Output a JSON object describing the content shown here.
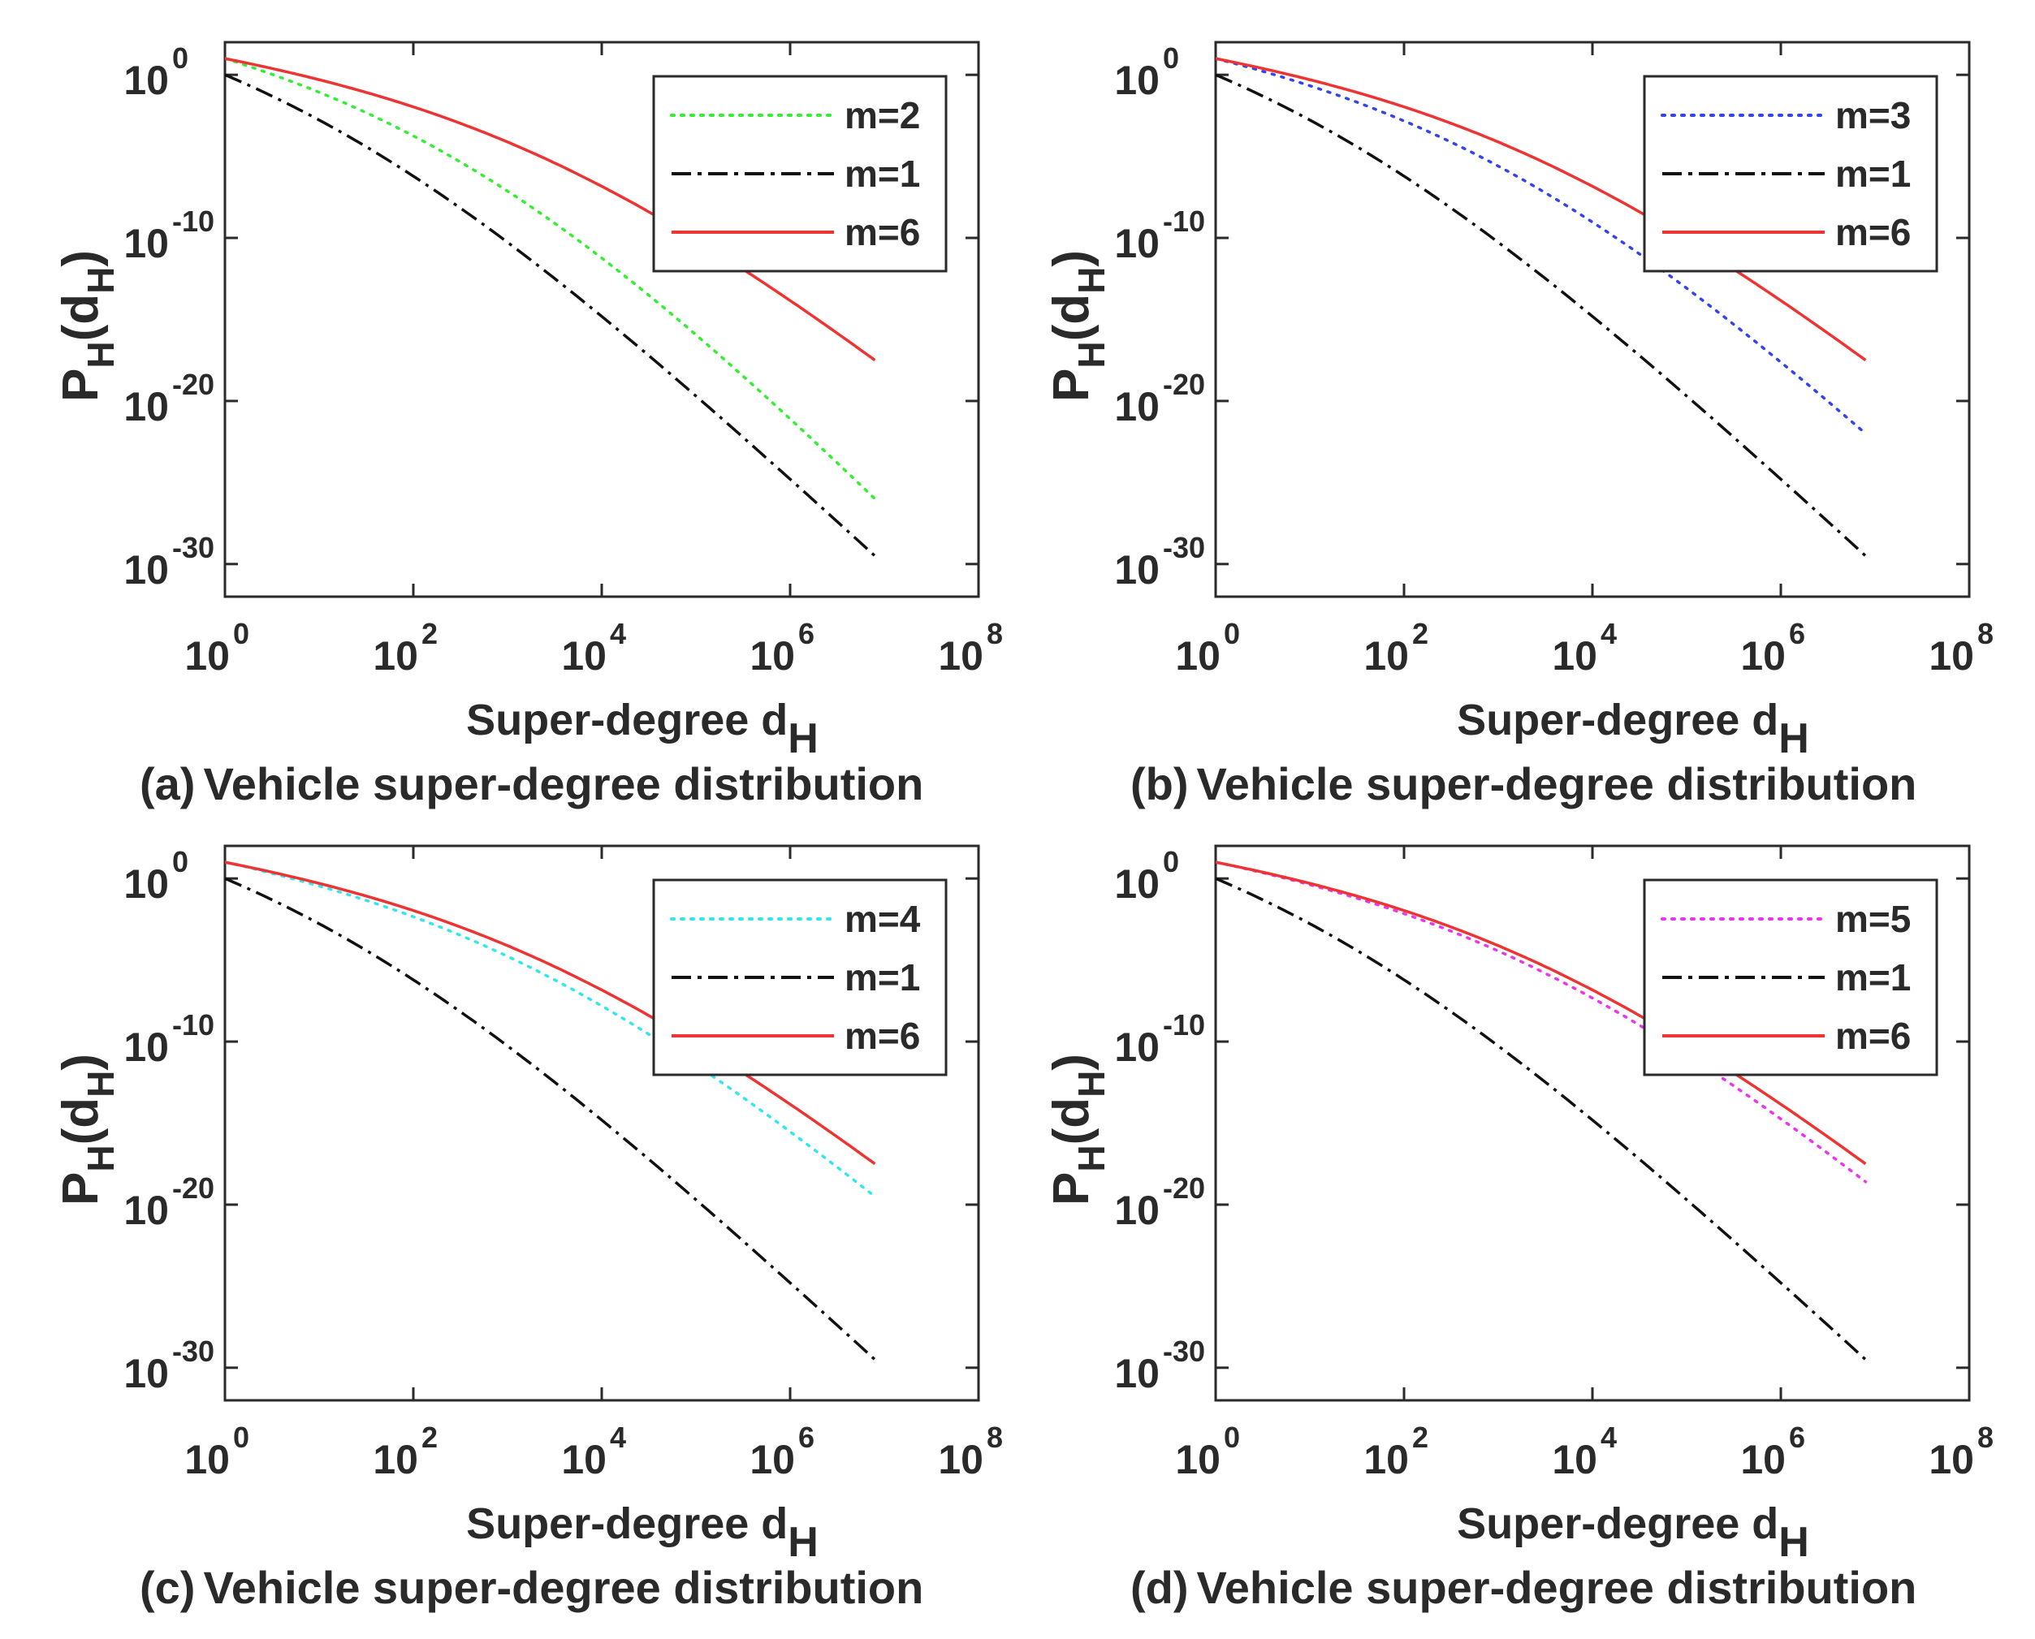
{
  "chart_data": [
    {
      "type": "line",
      "panel": "a",
      "caption_id": "(a)",
      "caption": "Vehicle super-degree distribution",
      "xlabel_text": "Super-degree d",
      "xlabel_sub": "H",
      "ylabel_text": "P",
      "ylabel_sub": "H",
      "ylabel_arg_open": "(d",
      "ylabel_arg_sub": "H",
      "ylabel_arg_close": ")",
      "xscale": "log",
      "yscale": "log",
      "xlim_exp": [
        0,
        8
      ],
      "ylim_exp": [
        -32,
        2
      ],
      "xticks": [
        {
          "base": "10",
          "exp": "0"
        },
        {
          "base": "10",
          "exp": "2"
        },
        {
          "base": "10",
          "exp": "4"
        },
        {
          "base": "10",
          "exp": "6"
        },
        {
          "base": "10",
          "exp": "8"
        }
      ],
      "yticks": [
        {
          "base": "10",
          "exp": "0",
          "value_exp": 0
        },
        {
          "base": "10",
          "exp": "-10",
          "value_exp": -10
        },
        {
          "base": "10",
          "exp": "-20",
          "value_exp": -20
        },
        {
          "base": "10",
          "exp": "-30",
          "value_exp": -30
        }
      ],
      "legend_position": "top-right",
      "series": [
        {
          "name": "m=2",
          "color": "#33ee33",
          "style": "dotted",
          "m": 2
        },
        {
          "name": "m=1",
          "color": "#111111",
          "style": "dashdot",
          "m": 1
        },
        {
          "name": "m=6",
          "color": "#ee3333",
          "style": "solid",
          "m": 6
        }
      ]
    },
    {
      "type": "line",
      "panel": "b",
      "caption_id": "(b)",
      "caption": "Vehicle super-degree distribution",
      "xlabel_text": "Super-degree d",
      "xlabel_sub": "H",
      "ylabel_text": "P",
      "ylabel_sub": "H",
      "ylabel_arg_open": "(d",
      "ylabel_arg_sub": "H",
      "ylabel_arg_close": ")",
      "xscale": "log",
      "yscale": "log",
      "xlim_exp": [
        0,
        8
      ],
      "ylim_exp": [
        -32,
        2
      ],
      "xticks": [
        {
          "base": "10",
          "exp": "0"
        },
        {
          "base": "10",
          "exp": "2"
        },
        {
          "base": "10",
          "exp": "4"
        },
        {
          "base": "10",
          "exp": "6"
        },
        {
          "base": "10",
          "exp": "8"
        }
      ],
      "yticks": [
        {
          "base": "10",
          "exp": "0",
          "value_exp": 0
        },
        {
          "base": "10",
          "exp": "-10",
          "value_exp": -10
        },
        {
          "base": "10",
          "exp": "-20",
          "value_exp": -20
        },
        {
          "base": "10",
          "exp": "-30",
          "value_exp": -30
        }
      ],
      "legend_position": "top-right",
      "series": [
        {
          "name": "m=3",
          "color": "#3344ee",
          "style": "dotted",
          "m": 3
        },
        {
          "name": "m=1",
          "color": "#111111",
          "style": "dashdot",
          "m": 1
        },
        {
          "name": "m=6",
          "color": "#ee3333",
          "style": "solid",
          "m": 6
        }
      ]
    },
    {
      "type": "line",
      "panel": "c",
      "caption_id": "(c)",
      "caption": "Vehicle super-degree distribution",
      "xlabel_text": "Super-degree d",
      "xlabel_sub": "H",
      "ylabel_text": "P",
      "ylabel_sub": "H",
      "ylabel_arg_open": "(d",
      "ylabel_arg_sub": "H",
      "ylabel_arg_close": ")",
      "xscale": "log",
      "yscale": "log",
      "xlim_exp": [
        0,
        8
      ],
      "ylim_exp": [
        -32,
        2
      ],
      "xticks": [
        {
          "base": "10",
          "exp": "0"
        },
        {
          "base": "10",
          "exp": "2"
        },
        {
          "base": "10",
          "exp": "4"
        },
        {
          "base": "10",
          "exp": "6"
        },
        {
          "base": "10",
          "exp": "8"
        }
      ],
      "yticks": [
        {
          "base": "10",
          "exp": "0",
          "value_exp": 0
        },
        {
          "base": "10",
          "exp": "-10",
          "value_exp": -10
        },
        {
          "base": "10",
          "exp": "-20",
          "value_exp": -20
        },
        {
          "base": "10",
          "exp": "-30",
          "value_exp": -30
        }
      ],
      "legend_position": "top-right",
      "series": [
        {
          "name": "m=4",
          "color": "#33e6ee",
          "style": "dotted",
          "m": 4
        },
        {
          "name": "m=1",
          "color": "#111111",
          "style": "dashdot",
          "m": 1
        },
        {
          "name": "m=6",
          "color": "#ee3333",
          "style": "solid",
          "m": 6
        }
      ]
    },
    {
      "type": "line",
      "panel": "d",
      "caption_id": "(d)",
      "caption": "Vehicle super-degree distribution",
      "xlabel_text": "Super-degree d",
      "xlabel_sub": "H",
      "ylabel_text": "P",
      "ylabel_sub": "H",
      "ylabel_arg_open": "(d",
      "ylabel_arg_sub": "H",
      "ylabel_arg_close": ")",
      "xscale": "log",
      "yscale": "log",
      "xlim_exp": [
        0,
        8
      ],
      "ylim_exp": [
        -32,
        2
      ],
      "xticks": [
        {
          "base": "10",
          "exp": "0"
        },
        {
          "base": "10",
          "exp": "2"
        },
        {
          "base": "10",
          "exp": "4"
        },
        {
          "base": "10",
          "exp": "6"
        },
        {
          "base": "10",
          "exp": "8"
        }
      ],
      "yticks": [
        {
          "base": "10",
          "exp": "0",
          "value_exp": 0
        },
        {
          "base": "10",
          "exp": "-10",
          "value_exp": -10
        },
        {
          "base": "10",
          "exp": "-20",
          "value_exp": -20
        },
        {
          "base": "10",
          "exp": "-30",
          "value_exp": -30
        }
      ],
      "legend_position": "top-right",
      "series": [
        {
          "name": "m=5",
          "color": "#ee33ee",
          "style": "dotted",
          "m": 5
        },
        {
          "name": "m=1",
          "color": "#111111",
          "style": "dashdot",
          "m": 1
        },
        {
          "name": "m=6",
          "color": "#ee3333",
          "style": "solid",
          "m": 6
        }
      ]
    }
  ],
  "curve_model": {
    "description": "log10 P_H(d_H) versus log10 d_H for each m",
    "start_log_x": 0,
    "end_log_x": 6.9,
    "value_at_start": {
      "1": 0,
      "2": 1,
      "3": 1,
      "4": 1,
      "5": 1,
      "6": 1
    },
    "knee_log_x": {
      "1": 1.0,
      "2": 2.5,
      "3": 3.0,
      "4": 3.2,
      "5": 3.35,
      "6": 3.4
    },
    "value_at_end": {
      "1": -29.5,
      "2": -26.0,
      "3": -22.0,
      "4": -19.5,
      "5": -18.6,
      "6": -17.5
    }
  }
}
